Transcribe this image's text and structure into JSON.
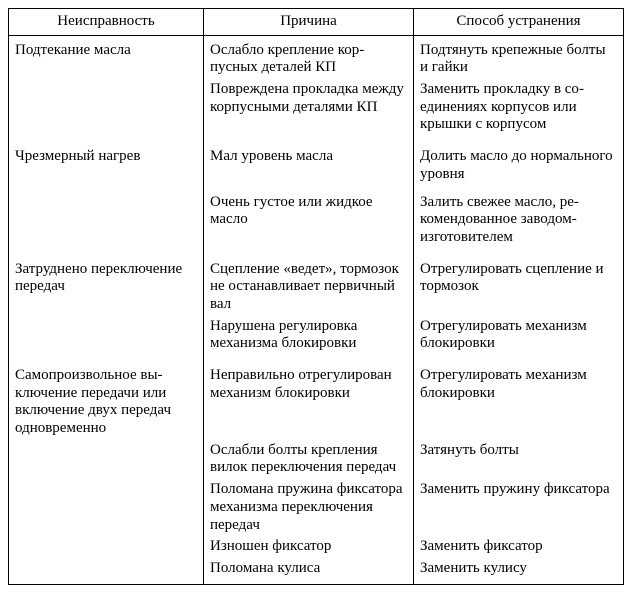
{
  "table": {
    "headers": [
      "Неисправность",
      "Причина",
      "Способ устранения"
    ],
    "groups": [
      {
        "fault": "Подтекание масла",
        "rows": [
          {
            "cause": "Ослабло крепление кор­пусных деталей КП",
            "fix": "Подтянуть крепежные болты и гайки"
          },
          {
            "cause": "Повреждена прокладка между корпусными дета­лями КП",
            "fix": "Заменить прокладку в со­единениях корпусов или крышки с корпусом"
          }
        ]
      },
      {
        "fault": "Чрезмерный нагрев",
        "rows": [
          {
            "cause": "Мал уровень масла",
            "fix": "Долить масло до нормаль­ного уровня"
          },
          {
            "cause": "Очень густое или жидкое масло",
            "fix": "Залить свежее масло, ре­комендованное заводом-изготовителем"
          }
        ]
      },
      {
        "fault": "Затруднено переключение передач",
        "rows": [
          {
            "cause": "Сцепление «ведет», тор­мозок не останавливает первичный вал",
            "fix": "Отрегулировать сцепление и тормозок"
          },
          {
            "cause": "Нарушена регулировка механизма блокировки",
            "fix": "Отрегулировать механизм блокировки"
          }
        ]
      },
      {
        "fault": "Самопроизвольное вы­ключение передачи или включение двух передач одновременно",
        "rows": [
          {
            "cause": "Неправильно отрегулиро­ван механизм блокировки",
            "fix": "Отрегулировать механизм блокировки"
          },
          {
            "cause": "Ослабли болты крепления вилок переключения пере­дач",
            "fix": "Затянуть болты"
          },
          {
            "cause": "Поломана пружина фик­сатора механизма пере­ключения передач",
            "fix": "Заменить пружину фикса­тора"
          },
          {
            "cause": "Изношен фиксатор",
            "fix": "Заменить фиксатор"
          },
          {
            "cause": "Поломана кулиса",
            "fix": "Заменить кулису"
          }
        ]
      }
    ]
  }
}
